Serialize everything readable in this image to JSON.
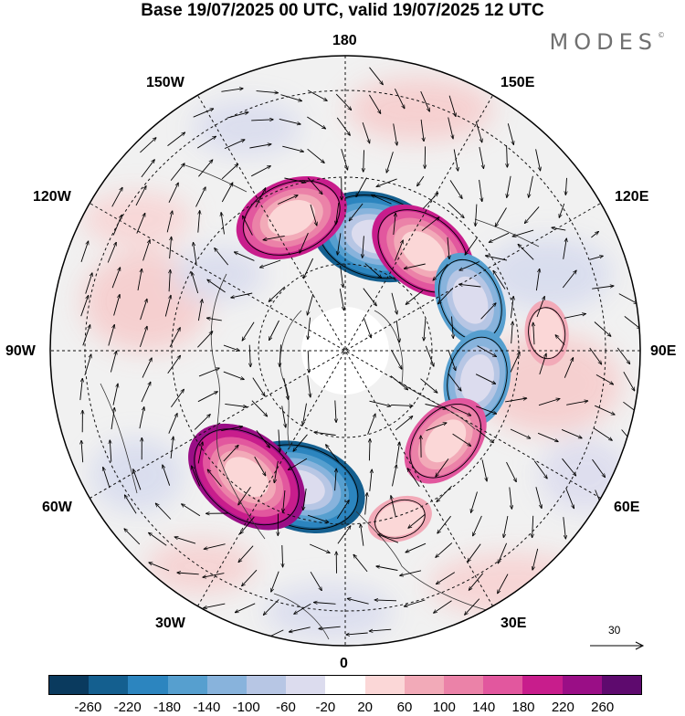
{
  "title": "Base 19/07/2025 00 UTC, valid 19/07/2025 12 UTC",
  "brand": {
    "name": "MODES",
    "mark": "©"
  },
  "longitude_labels": {
    "top": "180",
    "bottom": "0",
    "left": "90W",
    "right": "90E",
    "upper_left": "150W",
    "upper_right": "150E",
    "mid_left": "120W",
    "mid_right": "120E",
    "lower_left_a": "60W",
    "lower_right_a": "60E",
    "lower_left_b": "30W",
    "lower_right_b": "30E"
  },
  "reference_vector": {
    "label": "30"
  },
  "colorbar": {
    "colors": [
      "#0a3a5e",
      "#145f8f",
      "#2c85bf",
      "#569fcf",
      "#88b3dc",
      "#b7c6e4",
      "#dcdcee",
      "#ffffff",
      "#fbd7d7",
      "#f2aab8",
      "#eb82a8",
      "#e2579e",
      "#c81d8c",
      "#9a0e86",
      "#5e0a6e"
    ],
    "ticks": [
      "-260",
      "-220",
      "-180",
      "-140",
      "-100",
      "-60",
      "-20",
      "20",
      "60",
      "100",
      "140",
      "180",
      "220",
      "260"
    ]
  },
  "anomaly_centers": [
    {
      "lon": 165,
      "lat": 62,
      "value": -260
    },
    {
      "lon": 142,
      "lat": 60,
      "value": 220
    },
    {
      "lon": -158,
      "lat": 56,
      "value": 220
    },
    {
      "lon": 112,
      "lat": 58,
      "value": -160
    },
    {
      "lon": 78,
      "lat": 58,
      "value": -160
    },
    {
      "lon": 48,
      "lat": 58,
      "value": 180
    },
    {
      "lon": -18,
      "lat": 56,
      "value": -240
    },
    {
      "lon": -38,
      "lat": 52,
      "value": 260
    },
    {
      "lon": 18,
      "lat": 48,
      "value": 60
    },
    {
      "lon": 95,
      "lat": 42,
      "value": 60
    }
  ]
}
